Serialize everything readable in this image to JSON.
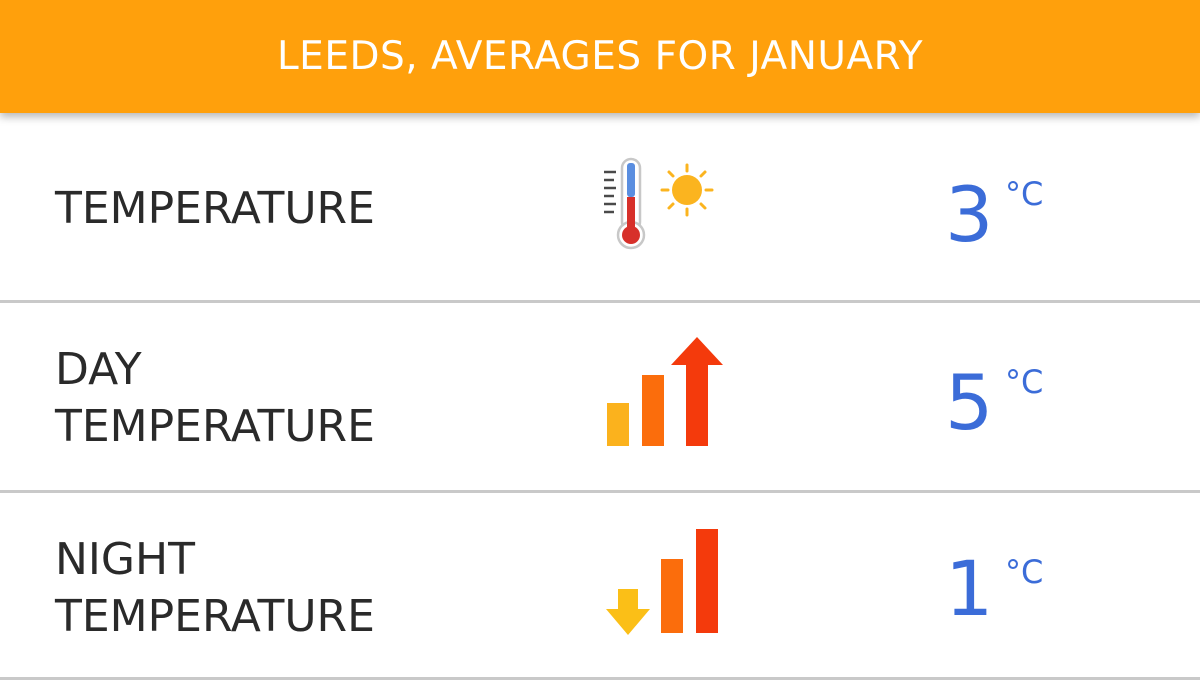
{
  "header": {
    "title": "LEEDS, AVERAGES FOR JANUARY"
  },
  "rows": [
    {
      "label_lines": [
        "TEMPERATURE"
      ],
      "icon": "thermometer-sun-icon",
      "value": "3",
      "unit": "°C"
    },
    {
      "label_lines": [
        "DAY",
        "TEMPERATURE"
      ],
      "icon": "bars-arrow-up-icon",
      "value": "5",
      "unit": "°C"
    },
    {
      "label_lines": [
        "NIGHT",
        "TEMPERATURE"
      ],
      "icon": "bars-arrow-down-icon",
      "value": "1",
      "unit": "°C"
    }
  ],
  "colors": {
    "header_bg": "#ffa00c",
    "value_text": "#3b6cd8",
    "label_text": "#2a2a2a",
    "bar_yellow": "#fbb21d",
    "bar_orange": "#fb6d0c",
    "bar_red": "#f43a0c",
    "arrow_down": "#fbbf17",
    "sun": "#fbb41f",
    "thermo_red": "#d7302a",
    "thermo_blue": "#5a8ee0"
  }
}
